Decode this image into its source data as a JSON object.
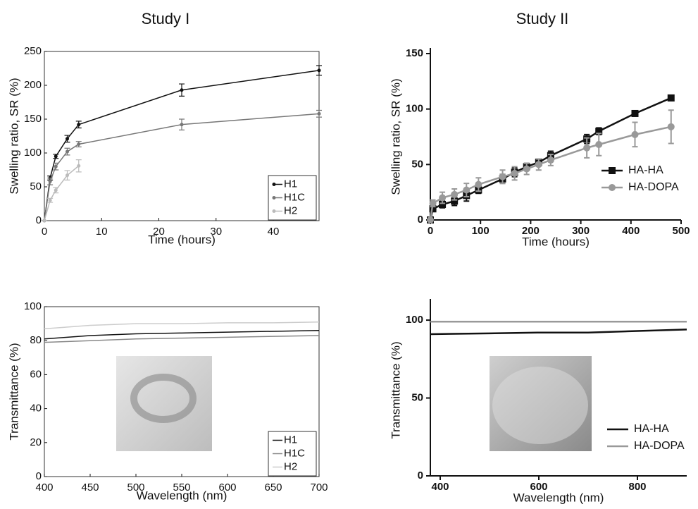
{
  "columns": [
    "Study I",
    "Study II"
  ],
  "chart_data": [
    {
      "type": "line",
      "xlabel": "Time (hours)",
      "ylabel": "Swelling ratio, SR (%)",
      "xlim": [
        0,
        48
      ],
      "ylim": [
        0,
        250
      ],
      "xticks": [
        0,
        10,
        20,
        30,
        40
      ],
      "yticks": [
        0,
        50,
        100,
        150,
        200,
        250
      ],
      "frame": true,
      "legend": "lower right",
      "legend_frame": true,
      "series": [
        {
          "name": "H1",
          "color": "#111111",
          "marker": "circle",
          "x": [
            0,
            1,
            2,
            4,
            6,
            24,
            48
          ],
          "values": [
            0,
            63,
            95,
            121,
            142,
            193,
            222
          ],
          "errors": [
            0,
            3,
            3,
            5,
            5,
            9,
            7
          ]
        },
        {
          "name": "H1C",
          "color": "#777777",
          "marker": "circle",
          "x": [
            0,
            1,
            2,
            4,
            6,
            24,
            48
          ],
          "values": [
            0,
            58,
            80,
            102,
            113,
            142,
            158
          ],
          "errors": [
            0,
            5,
            5,
            5,
            4,
            8,
            5
          ]
        },
        {
          "name": "H2",
          "color": "#bbbbbb",
          "marker": "circle",
          "x": [
            0,
            1,
            2,
            4,
            6
          ],
          "values": [
            0,
            30,
            45,
            67,
            81
          ],
          "errors": [
            0,
            3,
            4,
            7,
            9
          ]
        }
      ]
    },
    {
      "type": "line",
      "xlabel": "Time (hours)",
      "ylabel": "Swelling ratio, SR (%)",
      "xlim": [
        0,
        500
      ],
      "ylim": [
        0,
        150
      ],
      "xticks": [
        0,
        100,
        200,
        300,
        400,
        500
      ],
      "yticks": [
        0,
        50,
        100,
        150
      ],
      "frame": false,
      "legend": "center right",
      "legend_frame": false,
      "series": [
        {
          "name": "HA-HA",
          "color": "#111111",
          "marker": "square",
          "x": [
            0,
            5,
            24,
            48,
            72,
            96,
            144,
            168,
            192,
            216,
            240,
            312,
            336,
            408,
            480
          ],
          "values": [
            0,
            10,
            14,
            17,
            22,
            27,
            37,
            43,
            48,
            52,
            58,
            73,
            80,
            96,
            110
          ],
          "errors": [
            0,
            2,
            3,
            4,
            5,
            3,
            4,
            4,
            3,
            3,
            4,
            4,
            3,
            2,
            2
          ]
        },
        {
          "name": "HA-DOPA",
          "color": "#999999",
          "marker": "circle",
          "x": [
            0,
            5,
            24,
            48,
            72,
            96,
            144,
            168,
            192,
            216,
            240,
            312,
            336,
            408,
            480
          ],
          "values": [
            0,
            15,
            20,
            23,
            27,
            32,
            39,
            42,
            46,
            50,
            54,
            65,
            68,
            77,
            84
          ],
          "errors": [
            0,
            3,
            5,
            5,
            6,
            6,
            6,
            6,
            5,
            5,
            5,
            9,
            10,
            11,
            15
          ]
        }
      ]
    },
    {
      "type": "line",
      "xlabel": "Wavelength (nm)",
      "ylabel": "Transmittance (%)",
      "xlim": [
        400,
        700
      ],
      "ylim": [
        0,
        100
      ],
      "xticks": [
        400,
        450,
        500,
        550,
        600,
        650,
        700
      ],
      "yticks": [
        0,
        20,
        40,
        60,
        80,
        100
      ],
      "frame": true,
      "legend": "lower right",
      "legend_frame": true,
      "x": [
        400,
        450,
        500,
        550,
        600,
        650,
        700
      ],
      "series": [
        {
          "name": "H1",
          "color": "#111111",
          "values": [
            81,
            83,
            84,
            84.5,
            85,
            85.5,
            86
          ]
        },
        {
          "name": "H1C",
          "color": "#888888",
          "values": [
            79,
            80,
            81,
            81.5,
            82,
            82.5,
            83
          ]
        },
        {
          "name": "H2",
          "color": "#cccccc",
          "values": [
            87,
            89,
            90,
            90,
            90.5,
            90.5,
            91
          ]
        }
      ]
    },
    {
      "type": "line",
      "xlabel": "Wavelength (nm)",
      "ylabel": "Transmittance (%)",
      "xlim": [
        380,
        900
      ],
      "ylim": [
        0,
        110
      ],
      "xticks": [
        400,
        600,
        800
      ],
      "yticks": [
        0,
        50,
        100
      ],
      "frame": false,
      "legend": "lower right",
      "legend_frame": false,
      "x": [
        380,
        500,
        600,
        700,
        800,
        900
      ],
      "series": [
        {
          "name": "HA-HA",
          "color": "#111111",
          "values": [
            91,
            91.5,
            92,
            92,
            93,
            94
          ]
        },
        {
          "name": "HA-DOPA",
          "color": "#999999",
          "values": [
            99,
            99,
            99,
            99,
            99,
            99
          ]
        }
      ]
    }
  ]
}
